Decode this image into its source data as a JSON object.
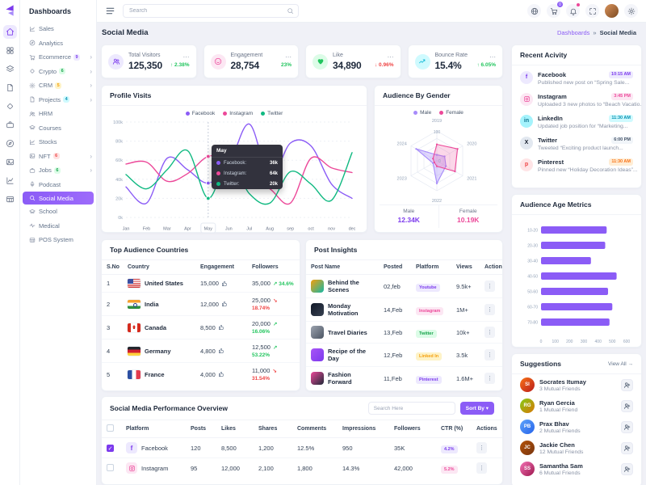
{
  "sidebar": {
    "title": "Dashboards",
    "items": [
      {
        "label": "Sales",
        "icon": "chart"
      },
      {
        "label": "Analytics",
        "icon": "compass"
      },
      {
        "label": "Ecommerce",
        "icon": "cart",
        "badge": "9",
        "badge_bg": "#ede9fe",
        "badge_color": "#7c3aed",
        "arrow": true
      },
      {
        "label": "Crypto",
        "icon": "gem",
        "badge": "6",
        "badge_bg": "#dcfce7",
        "badge_color": "#16a34a",
        "arrow": true
      },
      {
        "label": "CRM",
        "icon": "gear",
        "badge": "5",
        "badge_bg": "#fef3c7",
        "badge_color": "#f59e0b",
        "arrow": true
      },
      {
        "label": "Projects",
        "icon": "file",
        "badge": "4",
        "badge_bg": "#cffafe",
        "badge_color": "#0891b2",
        "arrow": true
      },
      {
        "label": "HRM",
        "icon": "users"
      },
      {
        "label": "Courses",
        "icon": "grad"
      },
      {
        "label": "Stocks",
        "icon": "chart"
      },
      {
        "label": "NFT",
        "icon": "gallery",
        "badge": "6",
        "badge_bg": "#fee2e2",
        "badge_color": "#ef4444",
        "arrow": true
      },
      {
        "label": "Jobs",
        "icon": "briefcase",
        "badge": "6",
        "badge_bg": "#dcfce7",
        "badge_color": "#16a34a",
        "arrow": true
      },
      {
        "label": "Podcast",
        "icon": "mic"
      },
      {
        "label": "Social Media",
        "icon": "search",
        "active": true
      },
      {
        "label": "School",
        "icon": "grad"
      },
      {
        "label": "Medical",
        "icon": "activity"
      },
      {
        "label": "POS System",
        "icon": "table"
      }
    ]
  },
  "rail": {
    "icons": [
      "home",
      "apps",
      "layers",
      "file",
      "gem",
      "briefcase",
      "compass",
      "gallery",
      "chart",
      "table"
    ],
    "active_index": 0
  },
  "topbar": {
    "search_placeholder": "Search",
    "cart_badge": "0"
  },
  "page": {
    "title": "Social Media",
    "breadcrumb_parent": "Dashboards",
    "breadcrumb_sep": "»",
    "breadcrumb_current": "Social Media"
  },
  "stats": [
    {
      "label": "Total Visitors",
      "value": "125,350",
      "delta": "2.38%",
      "delta_dir": "up",
      "delta_color": "#22c55e",
      "icon": "users",
      "icon_bg": "#ede9fe",
      "icon_color": "#7c3aed"
    },
    {
      "label": "Engagement",
      "value": "28,754",
      "delta": "23%",
      "delta_dir": "none",
      "delta_color": "#22c55e",
      "icon": "smile",
      "icon_bg": "#fce7f3",
      "icon_color": "#ec4899"
    },
    {
      "label": "Like",
      "value": "34,890",
      "delta": "0.96%",
      "delta_dir": "down",
      "delta_color": "#ef4444",
      "icon": "heart",
      "icon_bg": "#dcfce7",
      "icon_color": "#22c55e"
    },
    {
      "label": "Bounce Rate",
      "value": "15.4%",
      "delta": "6.05%",
      "delta_dir": "up",
      "delta_color": "#22c55e",
      "icon": "trend",
      "icon_bg": "#cffafe",
      "icon_color": "#06b6d4"
    }
  ],
  "profile_visits": {
    "title": "Profile Visits",
    "type": "line",
    "x": [
      "Jan",
      "Feb",
      "Mar",
      "Apr",
      "May",
      "Jun",
      "Jul",
      "Aug",
      "sep",
      "oct",
      "nov",
      "dec"
    ],
    "y_ticks": [
      "0k",
      "20k",
      "40k",
      "60k",
      "80k",
      "100k"
    ],
    "ylim": [
      0,
      100
    ],
    "series": [
      {
        "name": "Facebook",
        "color": "#8b5cf6",
        "values": [
          32,
          15,
          62,
          50,
          36,
          55,
          98,
          42,
          78,
          75,
          35,
          20
        ]
      },
      {
        "name": "Instagram",
        "color": "#ec4899",
        "values": [
          56,
          58,
          38,
          46,
          64,
          60,
          42,
          30,
          15,
          62,
          52,
          47
        ]
      },
      {
        "name": "Twitter",
        "color": "#10b981",
        "values": [
          45,
          30,
          50,
          70,
          20,
          60,
          25,
          15,
          48,
          35,
          18,
          68
        ]
      }
    ],
    "tooltip": {
      "month": "May",
      "index": 4,
      "rows": [
        {
          "name": "Facebook",
          "value": "36k",
          "color": "#8b5cf6"
        },
        {
          "name": "Instagram",
          "value": "64k",
          "color": "#ec4899"
        },
        {
          "name": "Twitter",
          "value": "20k",
          "color": "#10b981"
        }
      ]
    }
  },
  "audience_gender": {
    "title": "Audience By Gender",
    "type": "radar",
    "axes": [
      "2019",
      "2020",
      "2021",
      "2022",
      "2023",
      "2024"
    ],
    "max_label": "100",
    "min_label": "0",
    "series": [
      {
        "name": "Male",
        "color": "#a78bfa",
        "fill": "rgba(167,139,250,0.35)",
        "values": [
          20,
          30,
          35,
          75,
          15,
          80
        ]
      },
      {
        "name": "Female",
        "color": "#ec4899",
        "fill": "rgba(236,72,153,0.22)",
        "values": [
          55,
          80,
          70,
          18,
          10,
          15
        ]
      }
    ],
    "summary": [
      {
        "label": "Male",
        "value": "12.34K",
        "color": "#7c3aed"
      },
      {
        "label": "Female",
        "value": "10.19K",
        "color": "#ec4899"
      }
    ]
  },
  "countries": {
    "title": "Top Audience Countries",
    "headers": [
      "S.No",
      "Country",
      "Engagement",
      "Followers"
    ],
    "rows": [
      {
        "no": "1",
        "flag": "us",
        "country": "United States",
        "engagement": "15,000",
        "followers": "35,000",
        "change": "34.6%",
        "dir": "up"
      },
      {
        "no": "2",
        "flag": "in",
        "country": "India",
        "engagement": "12,000",
        "followers": "25,000",
        "change": "18.74%",
        "dir": "down"
      },
      {
        "no": "3",
        "flag": "ca",
        "country": "Canada",
        "engagement": "8,500",
        "followers": "20,000",
        "change": "16.06%",
        "dir": "up"
      },
      {
        "no": "4",
        "flag": "de",
        "country": "Germany",
        "engagement": "4,800",
        "followers": "12,500",
        "change": "53.22%",
        "dir": "up"
      },
      {
        "no": "5",
        "flag": "fr",
        "country": "France",
        "engagement": "4,000",
        "followers": "11,000",
        "change": "31.54%",
        "dir": "down"
      }
    ]
  },
  "post_insights": {
    "title": "Post Insights",
    "headers": [
      "Post Name",
      "Posted",
      "Platform",
      "Views",
      "Action"
    ],
    "rows": [
      {
        "name": "Behind the Scenes",
        "posted": "02,feb",
        "platform": "Youtube",
        "badge_bg": "#ede9fe",
        "badge_color": "#7c3aed",
        "views": "9.5k+",
        "thumb": "linear-gradient(135deg,#f59e0b,#14b8a6)"
      },
      {
        "name": "Monday Motivation",
        "posted": "14,Feb",
        "platform": "Instagram",
        "badge_bg": "#fce7f3",
        "badge_color": "#ec4899",
        "views": "1M+",
        "thumb": "linear-gradient(135deg,#111827,#374151)"
      },
      {
        "name": "Travel Diaries",
        "posted": "13,Feb",
        "platform": "Twitter",
        "badge_bg": "#dcfce7",
        "badge_color": "#16a34a",
        "views": "10k+",
        "thumb": "linear-gradient(135deg,#9ca3af,#4b5563)"
      },
      {
        "name": "Recipe of the Day",
        "posted": "12,Feb",
        "platform": "Linked In",
        "badge_bg": "#fef3c7",
        "badge_color": "#f59e0b",
        "views": "3.5k",
        "thumb": "linear-gradient(135deg,#a855f7,#7c3aed)"
      },
      {
        "name": "Fashion Forward",
        "posted": "11,Feb",
        "platform": "Pinterest",
        "badge_bg": "#ede9fe",
        "badge_color": "#7c3aed",
        "views": "1.6M+",
        "thumb": "linear-gradient(135deg,#ec4899,#1f2937)"
      }
    ]
  },
  "performance": {
    "title": "Social Media Performance Overview",
    "search_placeholder": "Search Here",
    "sort_label": "Sort By",
    "headers": [
      "Platform",
      "Posts",
      "Likes",
      "Shares",
      "Comments",
      "Impressions",
      "Followers",
      "CTR (%)",
      "Actions"
    ],
    "rows": [
      {
        "checked": true,
        "platform": "Facebook",
        "glyph": "f",
        "icon_bg": "#ede9fe",
        "icon_color": "#7c3aed",
        "posts": "120",
        "likes": "8,500",
        "shares": "1,200",
        "comments": "12.5%",
        "impressions": "950",
        "followers": "35K",
        "ctr": "4.2%",
        "ctr_bg": "#ede9fe",
        "ctr_color": "#7c3aed"
      },
      {
        "checked": false,
        "platform": "Instagram",
        "glyph": "ig",
        "icon_bg": "#fce7f3",
        "icon_color": "#ec4899",
        "posts": "95",
        "likes": "12,000",
        "shares": "2,100",
        "comments": "1,800",
        "impressions": "14.3%",
        "followers": "42,000",
        "ctr": "5.2%",
        "ctr_bg": "#fce7f3",
        "ctr_color": "#ec4899"
      }
    ]
  },
  "recent_activity": {
    "title": "Recent Acivity",
    "items": [
      {
        "platform": "Facebook",
        "glyph": "f",
        "icon_bg": "#ede9fe",
        "icon_color": "#7c3aed",
        "time": "10:15 AM",
        "time_bg": "#ede9fe",
        "time_color": "#7c3aed",
        "desc": "Published new post on “Spring Sale..."
      },
      {
        "platform": "Instagram",
        "glyph": "ig",
        "icon_bg": "#fce7f3",
        "icon_color": "#ec4899",
        "time": "3:45 PM",
        "time_bg": "#fce7f3",
        "time_color": "#ec4899",
        "desc": "Uploaded 3 new photos to “Beach Vacatio..."
      },
      {
        "platform": "LinkedIn",
        "glyph": "in",
        "icon_bg": "#a5f3fc",
        "icon_color": "#0e7490",
        "time": "11:30 AM",
        "time_bg": "#cffafe",
        "time_color": "#0891b2",
        "desc": "Updated job position for “Marketing..."
      },
      {
        "platform": "Twitter",
        "glyph": "X",
        "icon_bg": "#e2e8f0",
        "icon_color": "#111827",
        "time": "6:00 PM",
        "time_bg": "#f1f5f9",
        "time_color": "#475569",
        "desc": "Tweeted “Exciting product launch..."
      },
      {
        "platform": "Pinterest",
        "glyph": "p",
        "icon_bg": "#ffe4e6",
        "icon_color": "#ef4444",
        "time": "11:30 AM",
        "time_bg": "#ffedd5",
        "time_color": "#f97316",
        "desc": "Pinned new “Holiday Decoration Ideas”..."
      }
    ]
  },
  "age_metrics": {
    "title": "Audience Age Metrics",
    "type": "bar",
    "categories": [
      "10-20",
      "20-30",
      "30-40",
      "40-50",
      "50-60",
      "60-70",
      "70-80"
    ],
    "values": [
      460,
      450,
      350,
      530,
      470,
      500,
      480
    ],
    "xlim": [
      0,
      600
    ],
    "x_ticks": [
      "0",
      "100",
      "200",
      "300",
      "400",
      "500",
      "600"
    ],
    "bar_color": "#8b5cf6"
  },
  "suggestions": {
    "title": "Suggestions",
    "view_all": "View All",
    "items": [
      {
        "name": "Socrates Itumay",
        "sub": "3 Mutual Friends",
        "avatar": "linear-gradient(135deg,#f97316,#b91c1c)"
      },
      {
        "name": "Ryan Gercia",
        "sub": "1 Mutual Friend",
        "avatar": "linear-gradient(135deg,#84cc16,#d97706)"
      },
      {
        "name": "Prax Bhav",
        "sub": "2 Mutual Friends",
        "avatar": "linear-gradient(135deg,#60a5fa,#2563eb)"
      },
      {
        "name": "Jackie Chen",
        "sub": "12 Mutual Friends",
        "avatar": "linear-gradient(135deg,#b45309,#78350f)"
      },
      {
        "name": "Samantha Sam",
        "sub": "6 Mutual Friends",
        "avatar": "linear-gradient(135deg,#f472b6,#9d174d)"
      }
    ]
  }
}
